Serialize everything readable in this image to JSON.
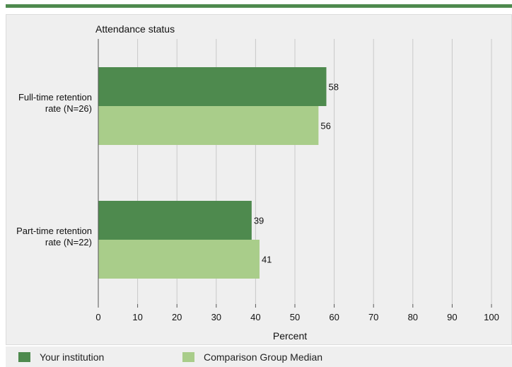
{
  "chart_data": {
    "type": "bar",
    "orientation": "horizontal",
    "title": "Attendance status",
    "xlabel": "Percent",
    "ylabel": "",
    "xlim": [
      0,
      100
    ],
    "x_ticks": [
      "0",
      "10",
      "20",
      "30",
      "40",
      "50",
      "60",
      "70",
      "80",
      "90",
      "100"
    ],
    "categories": [
      [
        "Full-time retention",
        "rate (N=26)"
      ],
      [
        "Part-time retention",
        "rate (N=22)"
      ]
    ],
    "series": [
      {
        "name": "Your institution",
        "color": "#4e8a4e",
        "values": [
          58,
          39
        ]
      },
      {
        "name": "Comparison Group Median",
        "color": "#a9cd8a",
        "values": [
          56,
          41
        ]
      }
    ],
    "grid": true,
    "legend_position": "bottom"
  }
}
